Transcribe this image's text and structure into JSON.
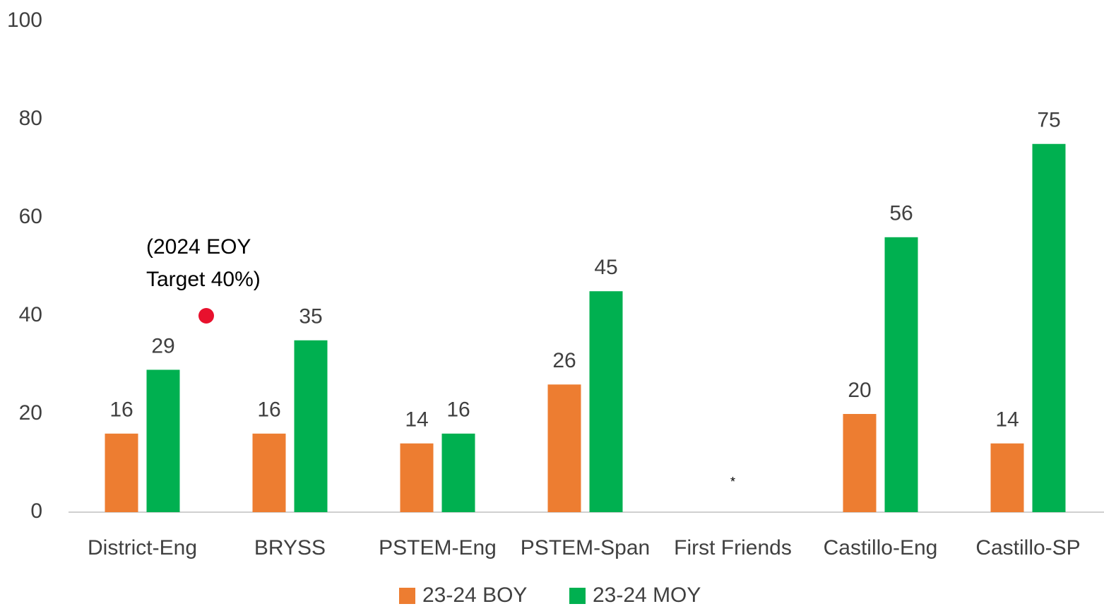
{
  "chart_data": {
    "type": "bar",
    "categories": [
      "District-Eng",
      "BRYSS",
      "PSTEM-Eng",
      "PSTEM-Span",
      "First Friends",
      "Castillo-Eng",
      "Castillo-SP"
    ],
    "series": [
      {
        "name": "23-24 BOY",
        "color": "#ed7d31",
        "values": [
          16,
          16,
          14,
          26,
          null,
          20,
          14
        ]
      },
      {
        "name": "23-24 MOY",
        "color": "#00b050",
        "values": [
          29,
          35,
          16,
          45,
          null,
          56,
          75
        ]
      }
    ],
    "ylim": [
      0,
      100
    ],
    "yticks": [
      0,
      20,
      40,
      60,
      80,
      100
    ],
    "grid": false,
    "target": {
      "text": [
        "(2024 EOY",
        "Target 40%)"
      ],
      "value": 40,
      "color": "#e8112d"
    },
    "note": "*",
    "legend": "bottom"
  }
}
